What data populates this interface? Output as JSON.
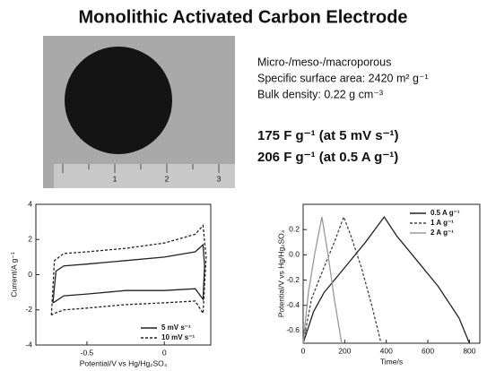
{
  "title": "Monolithic Activated Carbon Electrode",
  "photo": {
    "ruler_labels": [
      "1",
      "2",
      "3"
    ]
  },
  "properties": [
    "Micro-/meso-/macroporous",
    "Specific surface area: 2420 m² g⁻¹",
    "Bulk density: 0.22 g cm⁻³"
  ],
  "capacitance": [
    "175 F g⁻¹ (at 5 mV s⁻¹)",
    "206 F g⁻¹ (at 0.5 A g⁻¹)"
  ],
  "chart_data": [
    {
      "type": "line",
      "x_label": "Potential/V vs Hg/Hg₂SO₄",
      "y_label": "Current/A g⁻¹",
      "xlim": [
        -0.83,
        0.3
      ],
      "ylim": [
        -4,
        4
      ],
      "xticks": [
        -0.5,
        0
      ],
      "yticks": [
        -4,
        -2,
        0,
        2,
        4
      ],
      "legend": "lower right",
      "series": [
        {
          "name": "5 mV s⁻¹",
          "color": "#222222",
          "style": "solid",
          "x": [
            -0.72,
            -0.7,
            -0.65,
            -0.5,
            -0.25,
            0,
            0.2,
            0.25,
            0.26,
            0.25,
            0.2,
            0,
            -0.25,
            -0.5,
            -0.65,
            -0.7,
            -0.72
          ],
          "y": [
            -1.6,
            0.2,
            0.5,
            0.6,
            0.8,
            1.0,
            1.3,
            1.7,
            0.5,
            -1.4,
            -0.8,
            -0.9,
            -0.9,
            -1.1,
            -1.2,
            -1.5,
            -1.6
          ]
        },
        {
          "name": "10 mV s⁻¹",
          "color": "#222222",
          "style": "dashed",
          "x": [
            -0.73,
            -0.71,
            -0.65,
            -0.5,
            -0.25,
            0,
            0.2,
            0.25,
            0.27,
            0.25,
            0.2,
            0,
            -0.25,
            -0.5,
            -0.65,
            -0.71,
            -0.73
          ],
          "y": [
            -2.3,
            0.8,
            1.2,
            1.3,
            1.5,
            1.8,
            2.3,
            2.8,
            1.0,
            -2.2,
            -1.5,
            -1.6,
            -1.7,
            -1.9,
            -2.0,
            -2.2,
            -2.3
          ]
        }
      ]
    },
    {
      "type": "line",
      "x_label": "Time/s",
      "y_label": "Potential/V vs Hg/Hg₂SO₄",
      "xlim": [
        0,
        850
      ],
      "ylim": [
        -0.7,
        0.4
      ],
      "xticks": [
        0,
        200,
        400,
        600,
        800
      ],
      "yticks": [
        -0.6,
        -0.4,
        -0.2,
        {
          "value": 0,
          "label": "0.0"
        },
        0.2
      ],
      "legend": "upper right",
      "series": [
        {
          "name": "0.5 A g⁻¹",
          "color": "#222222",
          "style": "solid",
          "x": [
            0,
            50,
            100,
            200,
            300,
            390,
            450,
            550,
            650,
            750,
            800
          ],
          "y": [
            -0.7,
            -0.45,
            -0.3,
            -0.1,
            0.1,
            0.3,
            0.15,
            -0.05,
            -0.25,
            -0.5,
            -0.7
          ]
        },
        {
          "name": "1 A g⁻¹",
          "color": "#444444",
          "style": "dashed",
          "x": [
            0,
            40,
            100,
            150,
            195,
            230,
            280,
            330,
            375
          ],
          "y": [
            -0.7,
            -0.35,
            -0.1,
            0.1,
            0.3,
            0.15,
            -0.1,
            -0.4,
            -0.7
          ]
        },
        {
          "name": "2 A g⁻¹",
          "color": "#999999",
          "style": "solid",
          "x": [
            0,
            25,
            55,
            90,
            120,
            150,
            185
          ],
          "y": [
            -0.7,
            -0.3,
            0.0,
            0.3,
            0.0,
            -0.35,
            -0.7
          ]
        }
      ]
    }
  ]
}
